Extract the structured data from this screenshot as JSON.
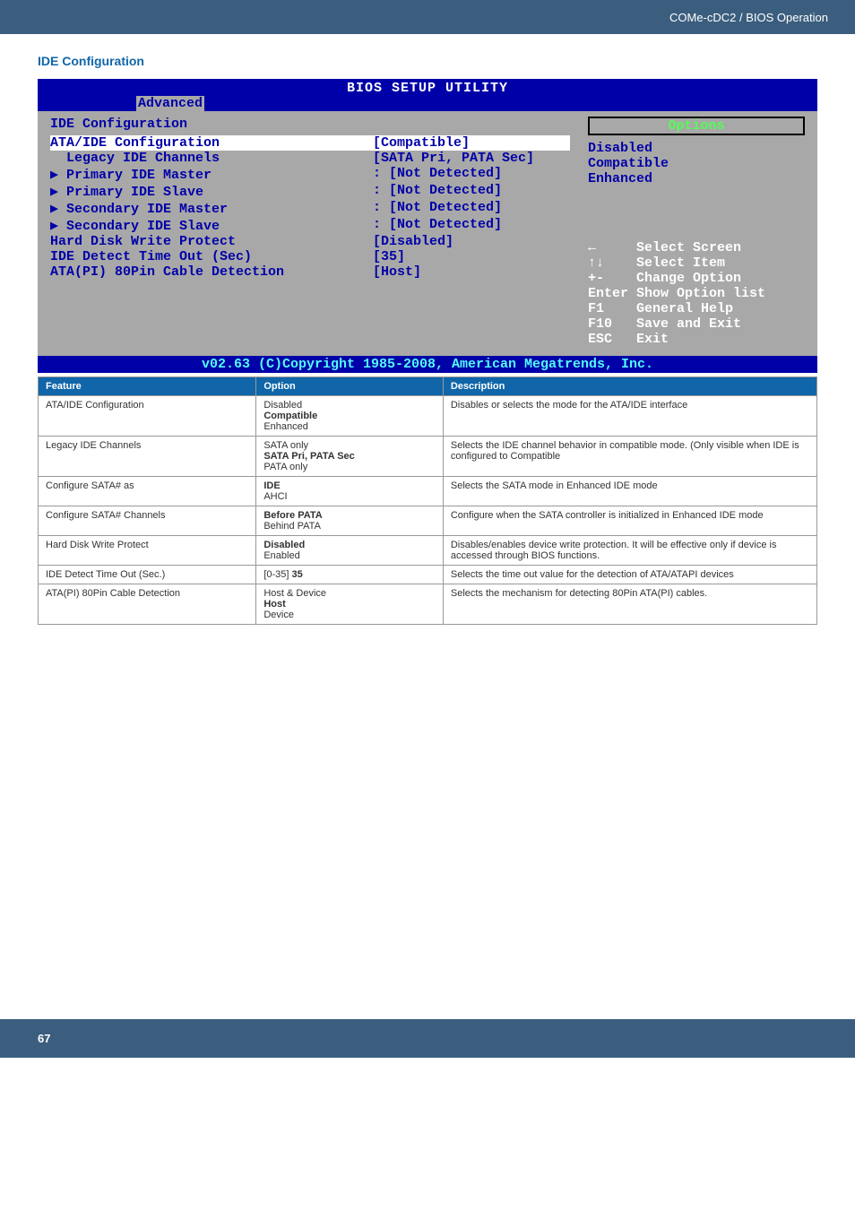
{
  "header": {
    "breadcrumb": "COMe-cDC2 / BIOS Operation"
  },
  "section": {
    "title": "IDE Configuration"
  },
  "bios": {
    "title": "BIOS SETUP UTILITY",
    "tab": "Advanced",
    "screen_name": "IDE Configuration",
    "options_title": "Options",
    "rows": [
      {
        "label": "ATA/IDE Configuration",
        "value": "[Compatible]",
        "highlight": true
      },
      {
        "label": "  Legacy IDE Channels",
        "value": "[SATA Pri, PATA Sec]"
      },
      {
        "label": "",
        "value": ""
      },
      {
        "label": "▶ Primary IDE Master",
        "value": ": [Not Detected]"
      },
      {
        "label": "▶ Primary IDE Slave",
        "value": ": [Not Detected]"
      },
      {
        "label": "▶ Secondary IDE Master",
        "value": ": [Not Detected]"
      },
      {
        "label": "▶ Secondary IDE Slave",
        "value": ": [Not Detected]"
      },
      {
        "label": "",
        "value": ""
      },
      {
        "label": "Hard Disk Write Protect",
        "value": "[Disabled]"
      },
      {
        "label": "IDE Detect Time Out (Sec)",
        "value": "[35]"
      },
      {
        "label": "ATA(PI) 80Pin Cable Detection",
        "value": "[Host]"
      }
    ],
    "opt_list": [
      "Disabled",
      "Compatible",
      "Enhanced"
    ],
    "help": [
      {
        "k": "←",
        "t": "Select Screen"
      },
      {
        "k": "↑↓",
        "t": "Select Item"
      },
      {
        "k": "+-",
        "t": "Change Option"
      },
      {
        "k": "Enter",
        "t": "Show Option list"
      },
      {
        "k": "F1",
        "t": "General Help"
      },
      {
        "k": "F10",
        "t": "Save and Exit"
      },
      {
        "k": "ESC",
        "t": "Exit"
      }
    ],
    "copyright": "v02.63 (C)Copyright 1985-2008, American Megatrends, Inc."
  },
  "table": {
    "headers": [
      "Feature",
      "Option",
      "Description"
    ],
    "rows": [
      {
        "f": "ATA/IDE Configuration",
        "o1": "Disabled",
        "o2": "Compatible",
        "o3": "Enhanced",
        "d": "Disables or selects the mode for the ATA/IDE interface"
      },
      {
        "f": "Legacy IDE Channels",
        "o1": "SATA only",
        "o2": "SATA Pri, PATA Sec",
        "o3": "PATA only",
        "d": "Selects the IDE channel behavior in compatible mode. (Only visible when IDE is configured to Compatible"
      },
      {
        "f": "Configure SATA# as",
        "o1": "",
        "o2": "IDE",
        "o3": "AHCI",
        "d": "Selects the SATA mode in Enhanced IDE mode"
      },
      {
        "f": "Configure SATA# Channels",
        "o1": "",
        "o2": "Before PATA",
        "o3": "Behind PATA",
        "d": "Configure when the SATA controller is initialized in Enhanced IDE mode"
      },
      {
        "f": "Hard Disk Write Protect",
        "o1": "",
        "o2": "Disabled",
        "o3": "Enabled",
        "d": "Disables/enables device write protection. It will be effective only if device is accessed through BIOS functions."
      },
      {
        "f": "IDE Detect Time Out (Sec.)",
        "o1": "",
        "o2": "[0-35] 35",
        "o3": "",
        "d": "Selects the time out value for the detection of ATA/ATAPI devices"
      },
      {
        "f": "ATA(PI) 80Pin Cable Detection",
        "o1": "Host & Device",
        "o2": "Host",
        "o3": "Device",
        "d": "Selects the mechanism for detecting 80Pin ATA(PI) cables."
      }
    ]
  },
  "footer": {
    "page": "67"
  }
}
